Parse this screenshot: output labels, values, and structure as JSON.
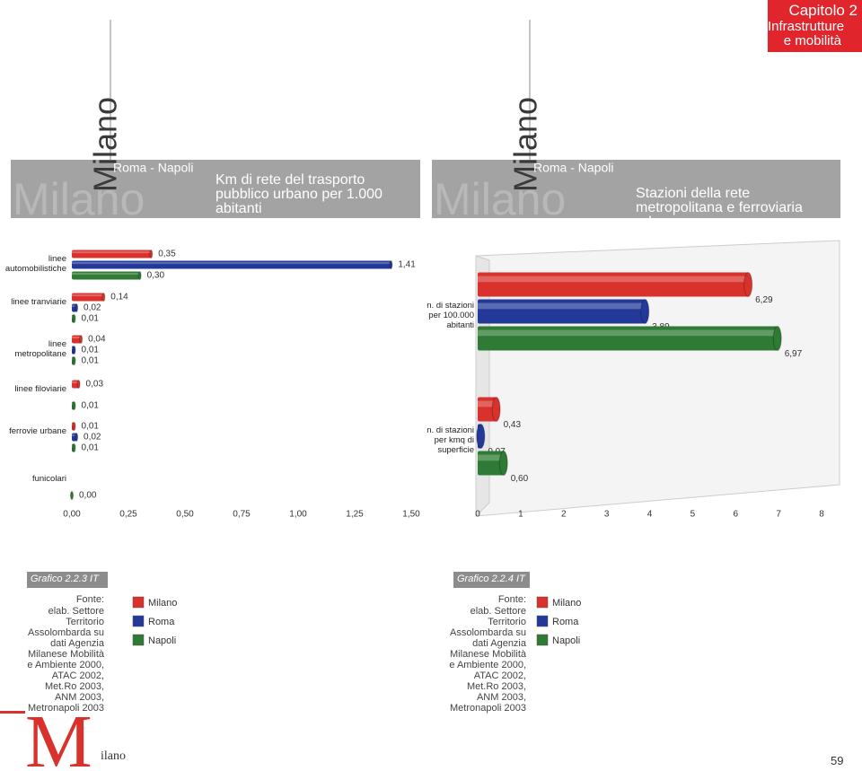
{
  "header": {
    "chapter": "Capitolo 2",
    "section": "Infrastrutture e mobilità"
  },
  "banner": {
    "city": "Milano",
    "others": "Roma - Napoli"
  },
  "chart_data": [
    {
      "type": "bar",
      "orientation": "horizontal",
      "title": "Km di rete del trasporto pubblico urbano per 1.000 abitanti",
      "figure_label": "Grafico 2.2.3 IT",
      "source_label": "Fonte:",
      "source": "elab. Settore Territorio Assolombarda su dati Agenzia Milanese Mobilità e Ambiente 2000, ATAC 2002, Met.Ro 2003, ANM 2003, Metronapoli 2003",
      "categories": [
        "linee automobilistiche",
        "linee tranviarie",
        "linee metropolitane",
        "linee filoviarie",
        "ferrovie urbane",
        "funicolari"
      ],
      "series": [
        {
          "name": "Milano",
          "color": "#d9312b",
          "values": [
            0.35,
            0.14,
            0.04,
            0.03,
            0.01,
            null
          ],
          "value_labels": [
            "0,35",
            "0,14",
            "0,04",
            "0,03",
            "0,01",
            null
          ]
        },
        {
          "name": "Roma",
          "color": "#23399a",
          "values": [
            1.41,
            0.02,
            0.01,
            null,
            0.02,
            null
          ],
          "value_labels": [
            "1,41",
            "0,02",
            "0,01",
            null,
            "0,02",
            null
          ]
        },
        {
          "name": "Napoli",
          "color": "#2f7a35",
          "values": [
            0.3,
            0.01,
            0.01,
            0.01,
            0.01,
            0
          ],
          "value_labels": [
            "0,30",
            "0,01",
            "0,01",
            "0,01",
            "0,01",
            "0,00"
          ]
        }
      ],
      "xlim": [
        0,
        1.5
      ],
      "xticks": [
        {
          "value": 0,
          "label": "0,00"
        },
        {
          "value": 0.25,
          "label": "0,25"
        },
        {
          "value": 0.5,
          "label": "0,50"
        },
        {
          "value": 0.75,
          "label": "0,75"
        },
        {
          "value": 1,
          "label": "1,00"
        },
        {
          "value": 1.25,
          "label": "1,25"
        },
        {
          "value": 1.5,
          "label": "1,50"
        }
      ]
    },
    {
      "type": "bar",
      "orientation": "horizontal",
      "title": "Stazioni della rete metropolitana e ferroviaria urbana",
      "figure_label": "Grafico 2.2.4 IT",
      "source_label": "Fonte:",
      "source": "elab. Settore Territorio Assolombarda su dati Agenzia Milanese Mobilità e Ambiente 2000, ATAC 2002, Met.Ro 2003, ANM 2003, Metronapoli 2003",
      "categories": [
        "n. di stazioni per 100.000 abitanti",
        "n. di stazioni per kmq di superficie"
      ],
      "series": [
        {
          "name": "Milano",
          "color": "#d9312b",
          "values": [
            6.29,
            0.43
          ],
          "value_labels": [
            "6,29",
            "0,43"
          ]
        },
        {
          "name": "Roma",
          "color": "#23399a",
          "values": [
            3.89,
            0.07
          ],
          "value_labels": [
            "3,89",
            "0,07"
          ]
        },
        {
          "name": "Napoli",
          "color": "#2f7a35",
          "values": [
            6.97,
            0.6
          ],
          "value_labels": [
            "6,97",
            "0,60"
          ]
        }
      ],
      "xlim": [
        0,
        8
      ],
      "xticks": [
        0,
        1,
        2,
        3,
        4,
        5,
        6,
        7,
        8
      ]
    }
  ],
  "footer": {
    "initial": "M",
    "rest": "ilano",
    "page": "59"
  }
}
